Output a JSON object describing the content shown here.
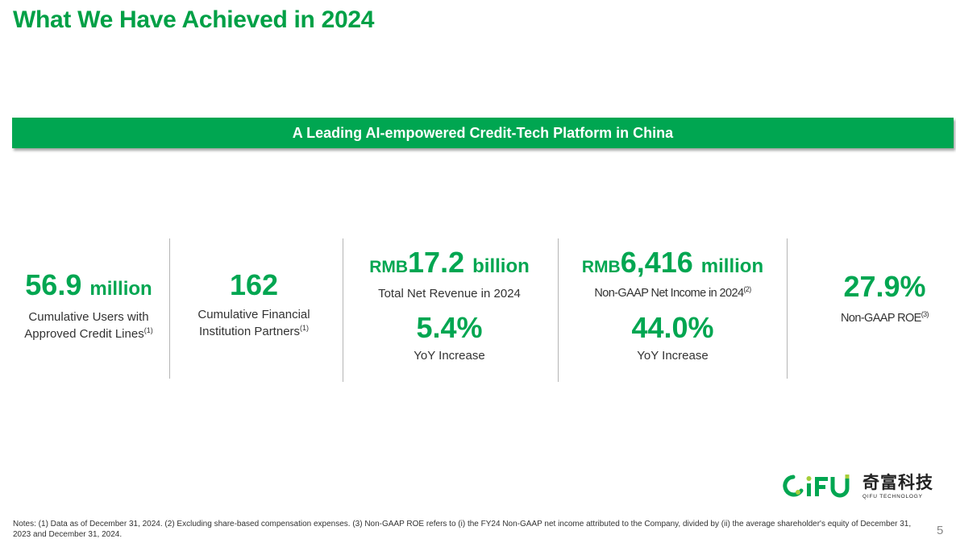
{
  "title": "What We Have Achieved in 2024",
  "banner": "A Leading AI-empowered Credit-Tech Platform in China",
  "metrics": [
    {
      "value": "56.9",
      "unit": "million",
      "label_line1": "Cumulative Users with",
      "label_line2": "Approved Credit Lines",
      "label_sup": "(1)"
    },
    {
      "value": "162",
      "label_line1": "Cumulative Financial",
      "label_line2": "Institution Partners",
      "label_sup": "(1)"
    },
    {
      "prefix": "RMB",
      "value": "17.2",
      "unit": "billion",
      "label": "Total Net Revenue in 2024",
      "growth": "5.4%",
      "growth_label": "YoY Increase"
    },
    {
      "prefix": "RMB",
      "value": "6,416",
      "unit": "million",
      "label": "Non-GAAP Net Income in 2024",
      "label_sup": "(2)",
      "growth": "44.0%",
      "growth_label": "YoY Increase"
    },
    {
      "value": "27.9%",
      "label": "Non-GAAP ROE",
      "label_sup": "(3)"
    }
  ],
  "logo": {
    "mark_text": "QiFU",
    "cn": "奇富科技",
    "en": "QIFU TECHNOLOGY"
  },
  "notes": "Notes: (1) Data as of December 31, 2024. (2) Excluding share-based compensation expenses. (3) Non-GAAP ROE refers to (i) the FY24 Non-GAAP net income attributed to the Company, divided by (ii) the average shareholder's equity of December 31, 2023 and December 31, 2024.",
  "page_number": "5",
  "colors": {
    "brand_green": "#00A651",
    "text": "#333333"
  }
}
